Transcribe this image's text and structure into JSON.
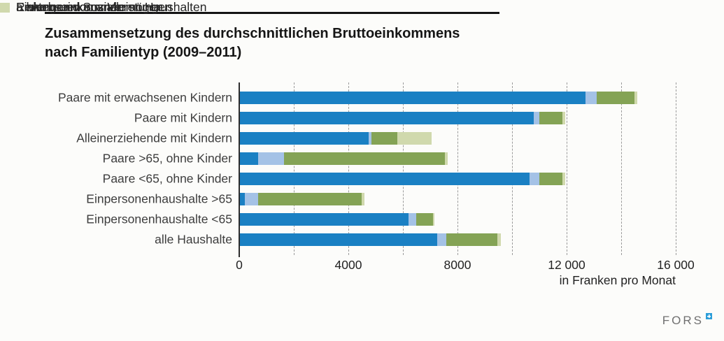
{
  "header": {
    "title_line1": "Zusammensetzung des durchschnittlichen Bruttoeinkommens",
    "title_line2": "nach Familientyp (2009–2011)"
  },
  "chart_data": {
    "type": "bar",
    "orientation": "horizontal",
    "stacked": true,
    "title": "Zusammensetzung des durchschnittlichen Bruttoeinkommens nach Familientyp (2009–2011)",
    "categories": [
      "Paare mit erwachsenen Kindern",
      "Paare mit Kindern",
      "Alleinerziehende mit Kindern",
      "Paare >65, ohne Kinder",
      "Paare <65, ohne Kinder",
      "Einpersonenhaushalte >65",
      "Einpersonenhaushalte <65",
      "alle Haushalte"
    ],
    "series": [
      {
        "name": "Erwerbseinkommen",
        "color": "#1a80c3",
        "values": [
          12700,
          10800,
          4750,
          700,
          10650,
          200,
          6200,
          7250
        ]
      },
      {
        "name": "Einkommen aus Vermögen",
        "color": "#a4c2e6",
        "values": [
          400,
          200,
          100,
          950,
          350,
          500,
          300,
          350
        ]
      },
      {
        "name": "Renten und Sozialleistungen",
        "color": "#84a355",
        "values": [
          1400,
          850,
          950,
          5900,
          850,
          3800,
          600,
          1850
        ]
      },
      {
        "name": "a hlungen von anderen Haushalten",
        "color": "#d0d9ad",
        "values": [
          100,
          100,
          1250,
          100,
          100,
          100,
          50,
          150
        ]
      }
    ],
    "xlim": [
      0,
      16000
    ],
    "xticks": [
      0,
      4000,
      8000,
      12000,
      16000
    ],
    "xtick_labels": [
      "0",
      "4000",
      "8000",
      "12 000",
      "16 000"
    ],
    "gridline_interval": 2000,
    "grid_style": "dashed-vertical",
    "xlabel": "in Franken pro Monat",
    "legend_position": "bottom-left"
  },
  "legend": {
    "items": [
      {
        "label": "Erwerbseinkommen",
        "color": "#1a80c3"
      },
      {
        "label": "Einkommen aus Vermögen",
        "color": "#a4c2e6"
      },
      {
        "label": "Renten und Sozialleistungen",
        "color": "#84a355"
      },
      {
        "label": "a hlungen von anderen Haushalten",
        "color": "#d0d9ad"
      }
    ]
  },
  "footer": {
    "logo_text": "FORS",
    "logo_mark_color": "#2d9ed9"
  }
}
